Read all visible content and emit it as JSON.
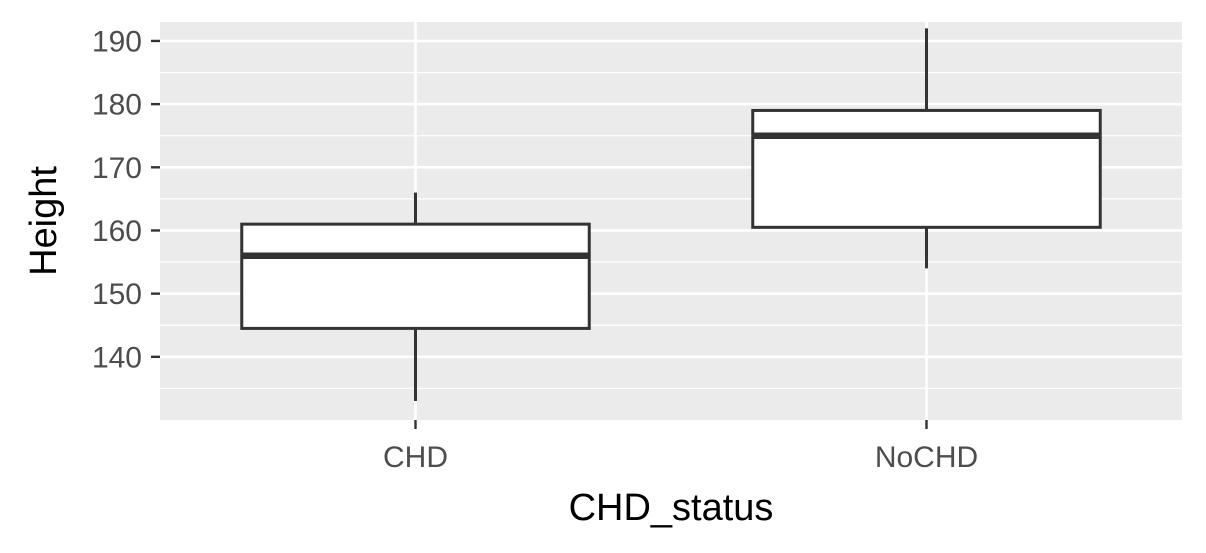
{
  "chart_data": {
    "type": "boxplot",
    "xlabel": "CHD_status",
    "ylabel": "Height",
    "ylim": [
      130,
      193
    ],
    "yticks": [
      140,
      150,
      160,
      170,
      180,
      190
    ],
    "categories": [
      "CHD",
      "NoCHD"
    ],
    "boxes": [
      {
        "category": "CHD",
        "whisker_low": 133,
        "q1": 144.5,
        "median": 156,
        "q3": 161,
        "whisker_high": 166
      },
      {
        "category": "NoCHD",
        "whisker_low": 154,
        "q1": 160.5,
        "median": 175,
        "q3": 179,
        "whisker_high": 192
      }
    ],
    "grid": true,
    "colors": {
      "panel": "#ebebeb",
      "grid": "#ffffff",
      "box_fill": "#ffffff",
      "box_line": "#333333",
      "tick_label": "#4d4d4d"
    }
  }
}
